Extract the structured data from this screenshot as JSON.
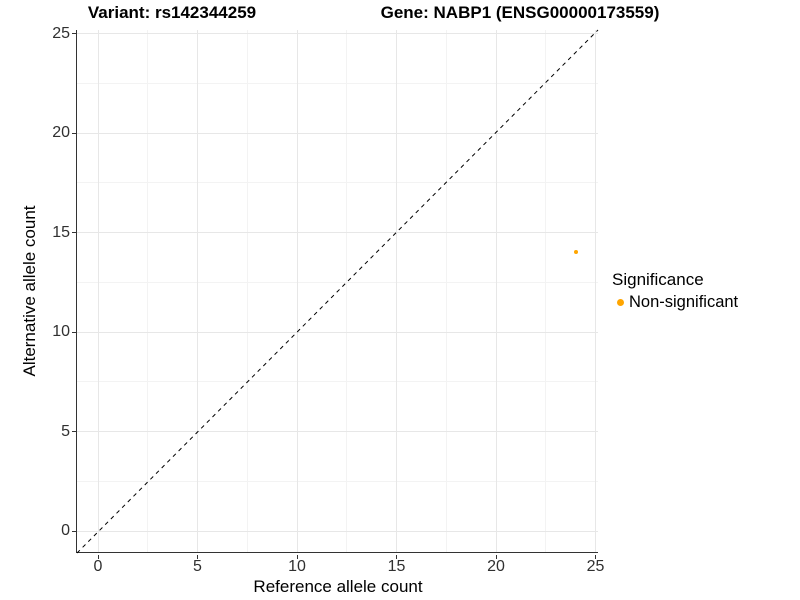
{
  "header": {
    "variant_title": "Variant: rs142344259",
    "gene_title": "Gene: NABP1 (ENSG00000173559)"
  },
  "legend": {
    "title": "Significance",
    "items": [
      {
        "label": "Non-significant",
        "color": "#FFA500"
      }
    ]
  },
  "chart_data": {
    "type": "scatter",
    "title_left": "Variant: rs142344259",
    "title_right": "Gene: NABP1 (ENSG00000173559)",
    "xlabel": "Reference allele count",
    "ylabel": "Alternative allele count",
    "xlim": [
      -1.1,
      25.2
    ],
    "ylim": [
      -1.1,
      25.2
    ],
    "x_ticks": [
      0,
      5,
      10,
      15,
      20,
      25
    ],
    "y_ticks": [
      0,
      5,
      10,
      15,
      20,
      25
    ],
    "x_minor_ticks": [
      2.5,
      7.5,
      12.5,
      17.5,
      22.5
    ],
    "y_minor_ticks": [
      2.5,
      7.5,
      12.5,
      17.5,
      22.5
    ],
    "grid": "major+minor",
    "legend_position": "right",
    "reference_line": {
      "type": "identity y=x",
      "style": "dashed",
      "color": "#000000"
    },
    "series": [
      {
        "name": "Non-significant",
        "color": "#FFA500",
        "points": [
          {
            "x": 24,
            "y": 14
          }
        ]
      }
    ]
  },
  "style_colors": {
    "axis_line": "#333333",
    "major_grid": "#e7e7e7",
    "minor_grid": "#f3f3f3",
    "tick_label": "#303030",
    "point": "#FFA500"
  }
}
